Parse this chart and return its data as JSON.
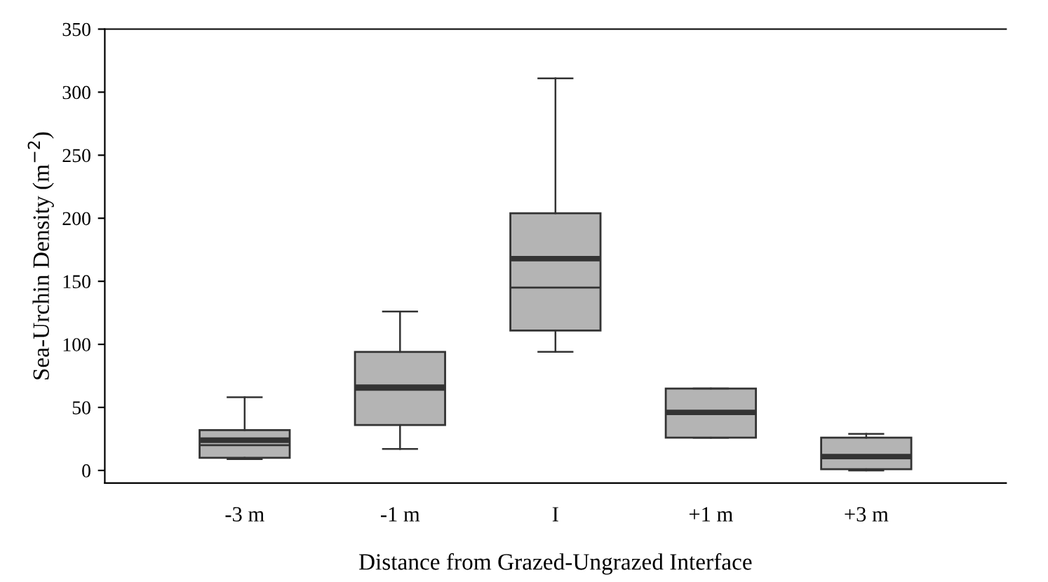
{
  "chart_data": {
    "type": "box",
    "xlabel": "Distance from Grazed-Ungrazed Interface",
    "ylabel": "Sea-Urchin Density (m$^{−2}$)",
    "categories": [
      "-3 m",
      "-1 m",
      "I",
      "+1 m",
      "+3 m"
    ],
    "color": "#b4b4b4",
    "boxes": [
      {
        "low": 9,
        "q1": 10,
        "median": 20,
        "q3": 32,
        "high": 58,
        "mean": 24
      },
      {
        "low": 17,
        "q1": 36,
        "median": 64,
        "q3": 94,
        "high": 126,
        "mean": 66
      },
      {
        "low": 94,
        "q1": 111,
        "median": 145,
        "q3": 204,
        "high": 311,
        "mean": 168
      },
      {
        "low": 26,
        "q1": 26,
        "median": 46,
        "q3": 65,
        "high": 65,
        "mean": 46
      },
      {
        "low": 0,
        "q1": 1,
        "median": 11,
        "q3": 26,
        "high": 29,
        "mean": 11
      }
    ],
    "ylim": [
      -10,
      350
    ],
    "yticks": [
      0,
      50,
      100,
      150,
      200,
      250,
      300,
      350
    ],
    "grid": false
  }
}
